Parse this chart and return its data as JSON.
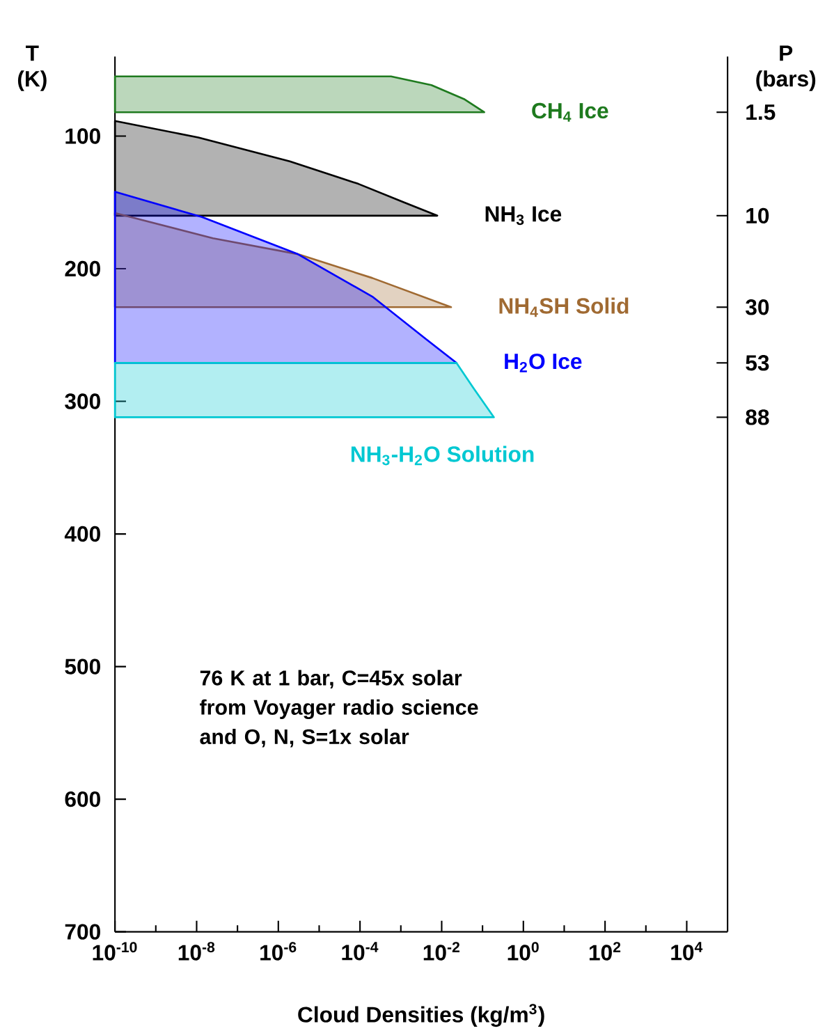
{
  "chart_data": {
    "type": "area",
    "xlabel": "Cloud Densities (kg/m$^{3}$)",
    "ylabel": "T (K)",
    "y2label": "P (bars)",
    "log": "x",
    "xlim": [
      1e-10,
      100000.0
    ],
    "ylim": [
      700,
      40
    ],
    "xticks": [
      {
        "value": 1e-10,
        "label": "10$^{-10}$"
      },
      {
        "value": 1e-09,
        "label": null
      },
      {
        "value": 1e-08,
        "label": "10$^{-8}$"
      },
      {
        "value": 1e-07,
        "label": null
      },
      {
        "value": 1e-06,
        "label": "10$^{-6}$"
      },
      {
        "value": 1e-05,
        "label": null
      },
      {
        "value": 0.0001,
        "label": "10$^{-4}$"
      },
      {
        "value": 0.001,
        "label": null
      },
      {
        "value": 0.01,
        "label": "10$^{-2}$"
      },
      {
        "value": 0.1,
        "label": null
      },
      {
        "value": 1,
        "label": "10$^{0}$"
      },
      {
        "value": 10,
        "label": null
      },
      {
        "value": 100,
        "label": "10$^{2}$"
      },
      {
        "value": 1000,
        "label": null
      },
      {
        "value": 10000,
        "label": "10$^{4}$"
      }
    ],
    "yticks": [
      100,
      200,
      300,
      400,
      500,
      600,
      700
    ],
    "annotations": [
      "76 K at 1 bar, C=45x solar from Voyager radio science and O, N, S=1x solar",
      "1.5",
      "10",
      "30",
      "53",
      "88"
    ],
    "series": [
      {
        "name": "CH$_{4}$ Ice",
        "color": "#1e7a1e",
        "x": [
          1e-10,
          0.000575,
          0.0056,
          0.035,
          0.11,
          1e-10
        ],
        "values": [
          55,
          55,
          61.5,
          72,
          82,
          82
        ]
      },
      {
        "name": "NH$_{3}$ Ice",
        "color": "#000000",
        "x": [
          1e-10,
          1.1e-08,
          1.9e-06,
          9.1e-05,
          0.0012,
          0.0078,
          1e-10
        ],
        "values": [
          88.6,
          101,
          119,
          136,
          150,
          160,
          160
        ]
      },
      {
        "name": "NH$_{4}$SH Solid",
        "color": "#a06a32",
        "x": [
          1e-10,
          2.5e-08,
          3e-06,
          0.0002,
          0.017,
          1e-10
        ],
        "values": [
          158,
          177,
          189,
          207,
          229,
          229
        ]
      },
      {
        "name": "H$_{2}$O Ice",
        "color": "#0000ff",
        "x": [
          1e-10,
          1.35e-08,
          3e-06,
          0.0002,
          0.0041,
          0.023,
          1e-10
        ],
        "values": [
          142,
          161,
          189,
          221,
          253,
          271,
          271
        ]
      },
      {
        "name": "NH$_{3}$-H$_{2}$O Solution",
        "color": "#00c8d2",
        "x": [
          1e-10,
          0.023,
          0.06,
          0.19,
          1e-10
        ],
        "values": [
          271,
          271,
          290,
          312,
          312
        ]
      }
    ]
  }
}
